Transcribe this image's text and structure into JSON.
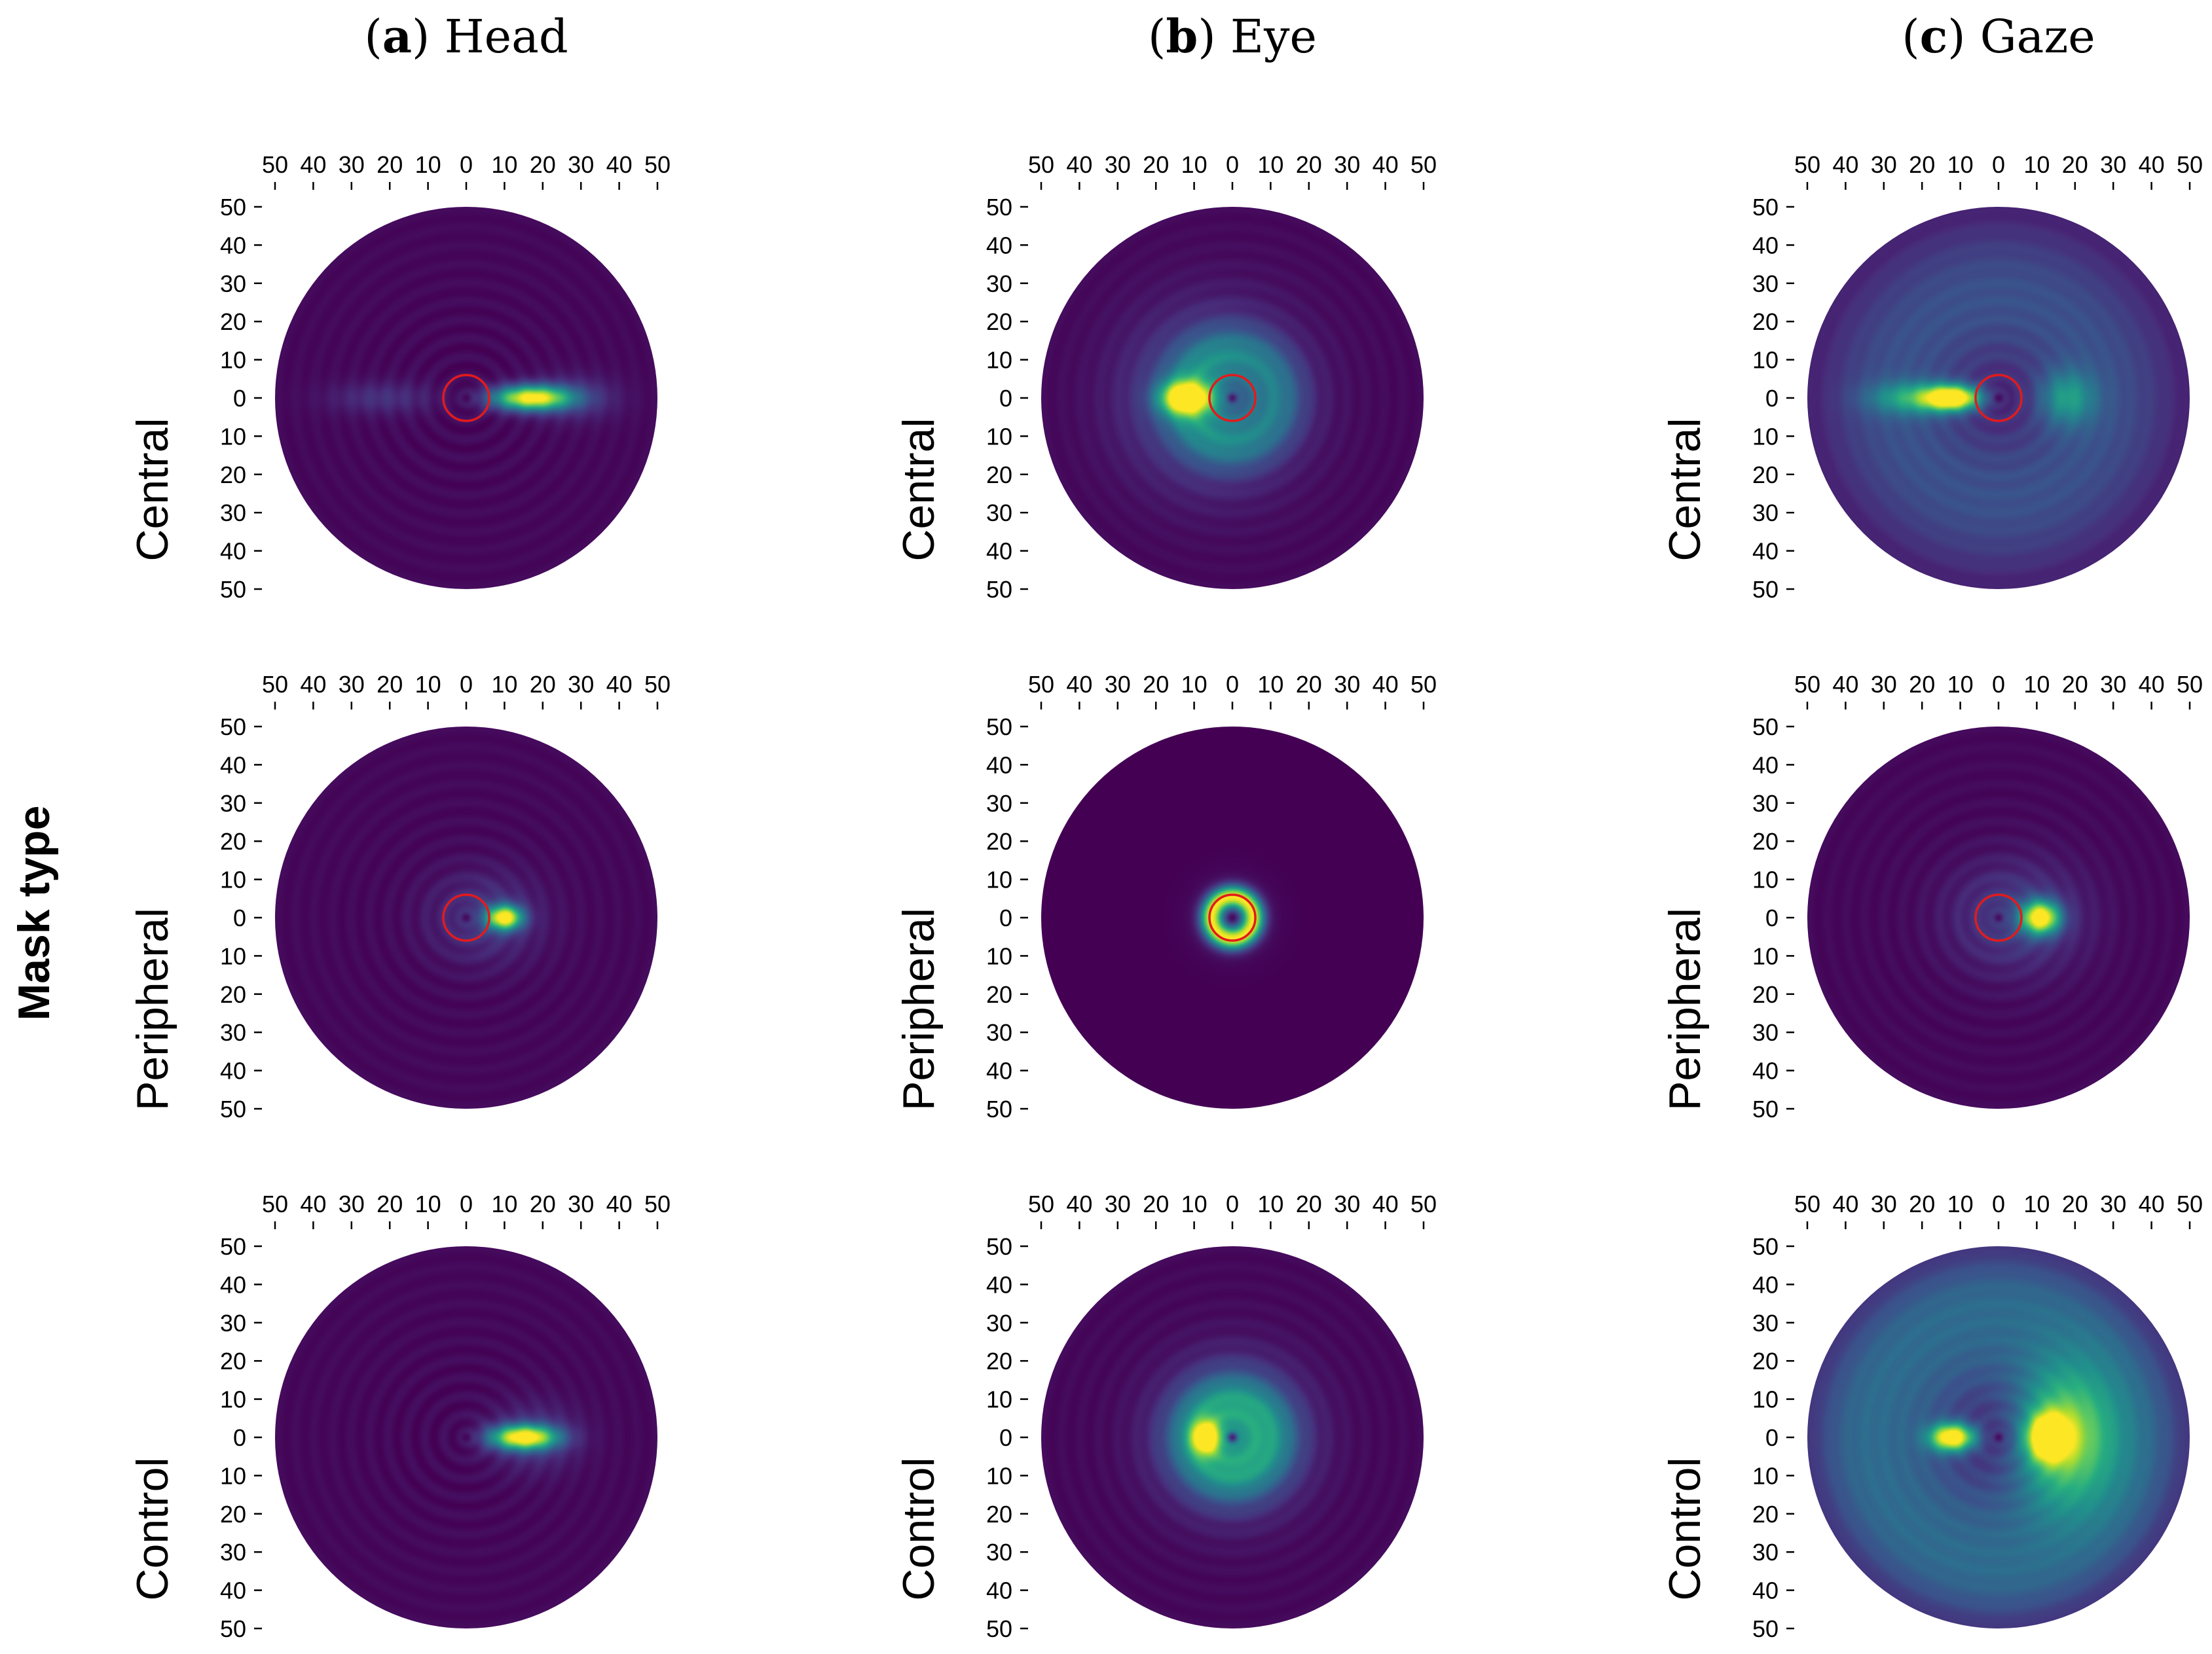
{
  "figure": {
    "ylabel": "Mask type",
    "colormap": [
      "#440154",
      "#472d7b",
      "#3b528b",
      "#2c728e",
      "#21918c",
      "#28ae80",
      "#5ec962",
      "#addc30",
      "#fde725"
    ],
    "marker_color": "#e41a1c"
  },
  "columns": [
    {
      "letter": "a",
      "label": "Head"
    },
    {
      "letter": "b",
      "label": "Eye"
    },
    {
      "letter": "c",
      "label": "Gaze"
    }
  ],
  "rows": [
    "Central",
    "Peripheral",
    "Control"
  ],
  "chart_data": {
    "type": "heatmap",
    "description": "Polar density maps of head, eye and gaze direction (degrees eccentricity) per mask type",
    "x_ticks": [
      50,
      40,
      30,
      20,
      10,
      0,
      10,
      20,
      30,
      40,
      50
    ],
    "y_ticks": [
      50,
      40,
      30,
      20,
      10,
      0,
      10,
      20,
      30,
      40,
      50
    ],
    "radius_deg": 50,
    "mask_radius_deg": 6,
    "panels": [
      {
        "row": "Central",
        "column": "Head",
        "mask": true,
        "base": 0.02,
        "blobs": [
          {
            "x": 17,
            "y": 0,
            "sx": 7,
            "sy": 2.2,
            "a": 1.0
          },
          {
            "x": -22,
            "y": 0,
            "sx": 10,
            "sy": 3,
            "a": 0.12
          },
          {
            "x": 28,
            "y": 0,
            "sx": 8,
            "sy": 4,
            "a": 0.15
          }
        ],
        "rings": []
      },
      {
        "row": "Central",
        "column": "Eye",
        "mask": true,
        "base": 0.02,
        "blobs": [
          {
            "x": -12,
            "y": 0,
            "sx": 4.5,
            "sy": 3,
            "a": 0.95
          },
          {
            "x": -5,
            "y": 0,
            "sx": 15,
            "sy": 15,
            "a": 0.3
          }
        ],
        "rings": [
          {
            "r": 12,
            "w": 5,
            "a": 0.25
          }
        ]
      },
      {
        "row": "Central",
        "column": "Gaze",
        "mask": true,
        "base": 0.05,
        "blobs": [
          {
            "x": -12,
            "y": 0,
            "sx": 5,
            "sy": 2.2,
            "a": 1.0
          },
          {
            "x": -22,
            "y": 0,
            "sx": 8,
            "sy": 3,
            "a": 0.4
          },
          {
            "x": 18,
            "y": 0,
            "sx": 5,
            "sy": 5,
            "a": 0.35
          }
        ],
        "rings": [
          {
            "r": 20,
            "w": 12,
            "a": 0.15
          },
          {
            "r": 35,
            "w": 10,
            "a": 0.1
          }
        ]
      },
      {
        "row": "Peripheral",
        "column": "Head",
        "mask": true,
        "base": 0.02,
        "blobs": [
          {
            "x": 10,
            "y": 0,
            "sx": 3.2,
            "sy": 2.2,
            "a": 1.0
          },
          {
            "x": 5,
            "y": 0,
            "sx": 10,
            "sy": 8,
            "a": 0.15
          }
        ],
        "rings": []
      },
      {
        "row": "Peripheral",
        "column": "Eye",
        "mask": true,
        "base": 0.0,
        "blobs": [
          {
            "x": 0,
            "y": 0,
            "sx": 6,
            "sy": 6,
            "a": 0.15
          }
        ],
        "rings": [
          {
            "r": 5.5,
            "w": 2,
            "a": 0.9
          }
        ]
      },
      {
        "row": "Peripheral",
        "column": "Gaze",
        "mask": true,
        "base": 0.02,
        "blobs": [
          {
            "x": 11,
            "y": 0,
            "sx": 3.5,
            "sy": 3,
            "a": 1.0
          },
          {
            "x": 5,
            "y": 0,
            "sx": 12,
            "sy": 10,
            "a": 0.18
          }
        ],
        "rings": []
      },
      {
        "row": "Control",
        "column": "Head",
        "mask": false,
        "base": 0.02,
        "blobs": [
          {
            "x": 15,
            "y": 0,
            "sx": 6,
            "sy": 2.2,
            "a": 1.0
          },
          {
            "x": 18,
            "y": 0,
            "sx": 8,
            "sy": 6,
            "a": 0.15
          }
        ],
        "rings": []
      },
      {
        "row": "Control",
        "column": "Eye",
        "mask": false,
        "base": 0.02,
        "blobs": [
          {
            "x": -7,
            "y": 0,
            "sx": 2.5,
            "sy": 3,
            "a": 0.8
          },
          {
            "x": 0,
            "y": 0,
            "sx": 12,
            "sy": 12,
            "a": 0.45
          }
        ],
        "rings": [
          {
            "r": 10,
            "w": 5,
            "a": 0.25
          }
        ]
      },
      {
        "row": "Control",
        "column": "Gaze",
        "mask": false,
        "base": 0.05,
        "blobs": [
          {
            "x": -12,
            "y": 0,
            "sx": 4,
            "sy": 2.5,
            "a": 1.0
          },
          {
            "x": 13,
            "y": 0,
            "sx": 3.5,
            "sy": 4,
            "a": 0.95
          },
          {
            "x": 17,
            "y": 0,
            "sx": 9,
            "sy": 12,
            "a": 0.6
          }
        ],
        "rings": [
          {
            "r": 25,
            "w": 12,
            "a": 0.25
          },
          {
            "r": 40,
            "w": 8,
            "a": 0.15
          }
        ]
      }
    ]
  }
}
